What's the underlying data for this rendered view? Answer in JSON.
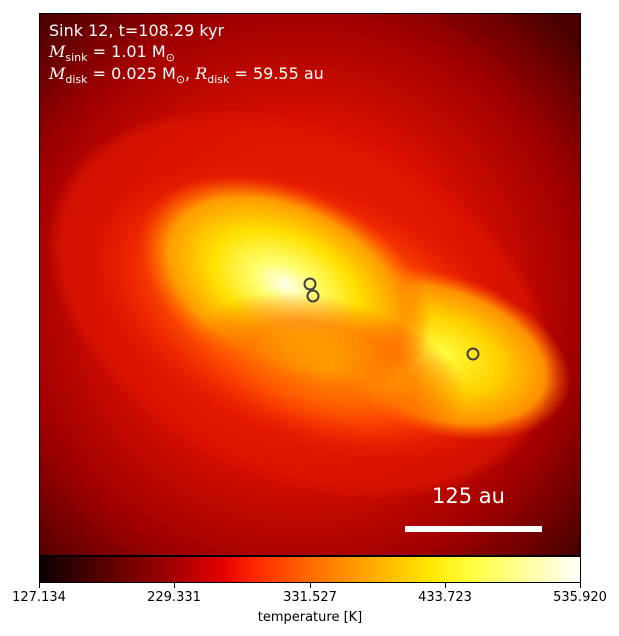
{
  "annotations": {
    "line1": "Sink 12, t=108.29 kyr",
    "msink_symbol": "M",
    "msink_sub": "sink",
    "msink_value": " = 1.01 M",
    "msink_unit_sub": "⊙",
    "mdisk_symbol": "M",
    "mdisk_sub": "disk",
    "mdisk_value": " = 0.025 M",
    "mdisk_unit_sub": "⊙",
    "rdisk_sep": ", ",
    "rdisk_symbol": "R",
    "rdisk_sub": "disk",
    "rdisk_value": " = 59.55 au"
  },
  "scalebar": {
    "label": "125 au"
  },
  "colorbar": {
    "label": "temperature [K]",
    "colormap": "hot",
    "min": 127.134,
    "max": 535.92,
    "ticks": [
      "127.134",
      "229.331",
      "331.527",
      "433.723",
      "535.920"
    ]
  },
  "sinks": [
    {
      "name": "sink-particle-1"
    },
    {
      "name": "sink-particle-2"
    },
    {
      "name": "sink-particle-3"
    }
  ],
  "colors": {
    "background_dark": "#5a0000",
    "annotation_text": "#ffffff",
    "sink_marker": "#404040"
  }
}
